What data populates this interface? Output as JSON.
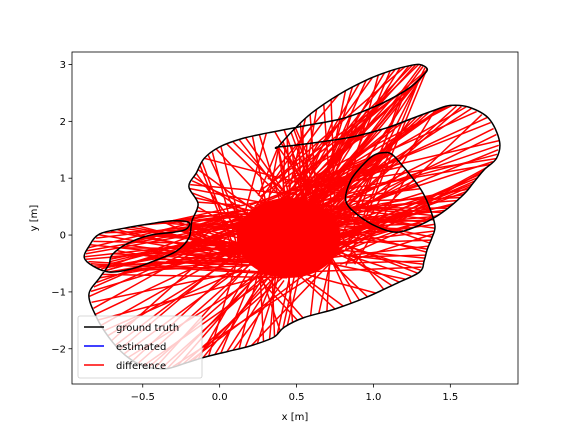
{
  "chart_data": {
    "type": "line",
    "xlabel": "x [m]",
    "ylabel": "y [m]",
    "xlim": [
      -0.96,
      1.94
    ],
    "ylim": [
      -2.62,
      3.22
    ],
    "x_ticks": [
      -0.5,
      0.0,
      0.5,
      1.0,
      1.5
    ],
    "x_tick_labels": [
      "−0.5",
      "0.0",
      "0.5",
      "1.0",
      "1.5"
    ],
    "y_ticks": [
      -2,
      -1,
      0,
      1,
      2,
      3
    ],
    "y_tick_labels": [
      "−2",
      "−1",
      "0",
      "1",
      "2",
      "3"
    ],
    "grid": false,
    "legend_position": "lower left",
    "series": [
      {
        "name": "ground truth",
        "color": "#000000",
        "x": [
          0.38,
          0.55,
          0.85,
          1.08,
          1.25,
          1.4,
          1.5,
          1.62,
          1.75,
          1.82,
          1.8,
          1.72,
          1.65,
          1.6,
          1.52,
          1.45,
          1.38,
          1.28,
          1.15,
          1.02,
          0.9,
          0.82,
          0.85,
          0.92,
          1.0,
          1.07,
          1.12,
          1.18,
          1.25,
          1.32,
          1.37,
          1.4,
          1.38,
          1.35,
          1.33,
          1.3,
          1.15,
          0.95,
          0.75,
          0.55,
          0.42,
          0.35,
          0.2,
          0.05,
          -0.1,
          -0.22,
          -0.35,
          -0.5,
          -0.62,
          -0.72,
          -0.8,
          -0.85,
          -0.78,
          -0.72,
          -0.7,
          -0.6,
          -0.45,
          -0.3,
          -0.22,
          -0.2,
          -0.3,
          -0.45,
          -0.62,
          -0.78,
          -0.85,
          -0.88,
          -0.82,
          -0.72,
          -0.58,
          -0.42,
          -0.28,
          -0.2,
          -0.18,
          -0.14,
          -0.2,
          -0.15,
          -0.1,
          0.0,
          0.15,
          0.32,
          0.55,
          0.8,
          1.0,
          1.15,
          1.25,
          1.32,
          1.35,
          1.3,
          1.22,
          1.1,
          0.95,
          0.78,
          0.6,
          0.48,
          0.38
        ],
        "y": [
          1.55,
          1.6,
          1.72,
          1.88,
          2.05,
          2.2,
          2.28,
          2.25,
          2.05,
          1.65,
          1.35,
          1.15,
          0.92,
          0.75,
          0.55,
          0.4,
          0.28,
          0.15,
          0.05,
          0.15,
          0.35,
          0.6,
          0.95,
          1.2,
          1.4,
          1.45,
          1.42,
          1.25,
          1.02,
          0.75,
          0.45,
          0.15,
          -0.05,
          -0.25,
          -0.45,
          -0.65,
          -0.85,
          -1.1,
          -1.3,
          -1.45,
          -1.62,
          -1.8,
          -1.95,
          -2.05,
          -2.15,
          -2.25,
          -2.35,
          -2.3,
          -2.1,
          -1.8,
          -1.45,
          -1.05,
          -0.75,
          -0.52,
          -0.35,
          -0.15,
          0.0,
          0.05,
          0.1,
          0.22,
          0.25,
          0.2,
          0.12,
          0.02,
          -0.2,
          -0.4,
          -0.55,
          -0.65,
          -0.6,
          -0.45,
          -0.28,
          -0.05,
          0.25,
          0.55,
          0.85,
          1.1,
          1.35,
          1.55,
          1.7,
          1.8,
          1.92,
          2.05,
          2.25,
          2.45,
          2.62,
          2.8,
          2.92,
          3.0,
          2.97,
          2.88,
          2.72,
          2.48,
          2.15,
          1.85,
          1.55
        ]
      },
      {
        "name": "estimated",
        "color": "#0000ff",
        "x": [],
        "y": []
      },
      {
        "name": "difference",
        "color": "#ff0000"
      }
    ]
  }
}
